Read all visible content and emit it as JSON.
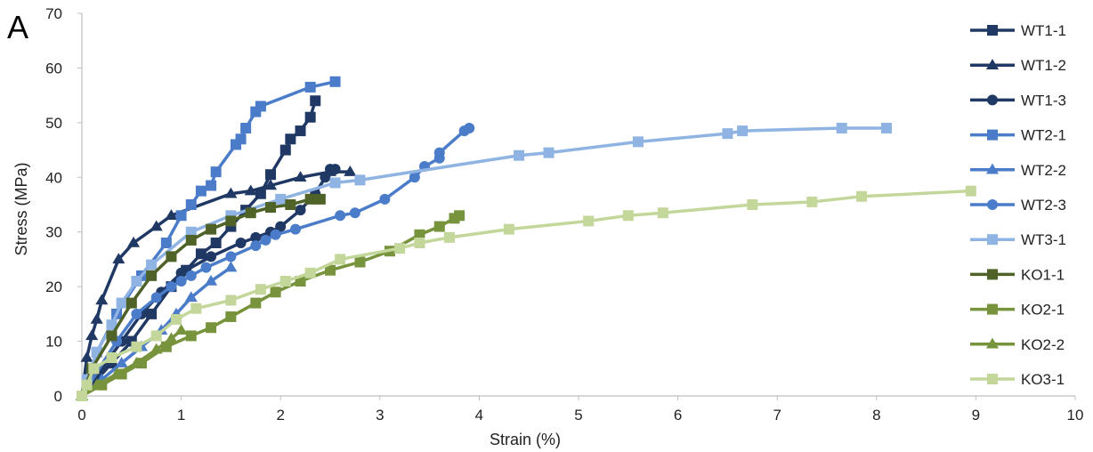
{
  "panel_label": "A",
  "chart_data": {
    "type": "line",
    "title": "",
    "xlabel": "Strain (%)",
    "ylabel": "Stress (MPa)",
    "xlim": [
      0,
      10
    ],
    "ylim": [
      0,
      70
    ],
    "xticks": [
      0,
      1,
      2,
      3,
      4,
      5,
      6,
      7,
      8,
      9,
      10
    ],
    "yticks": [
      0,
      10,
      20,
      30,
      40,
      50,
      60,
      70
    ],
    "grid": false,
    "legend_position": "right",
    "series": [
      {
        "name": "WT1-1",
        "color": "#1f3864",
        "marker": "square",
        "x": [
          0,
          0.15,
          0.3,
          0.5,
          0.7,
          0.9,
          1.05,
          1.2,
          1.35,
          1.5,
          1.65,
          1.8,
          1.9,
          2.05,
          2.1,
          2.2,
          2.3,
          2.35
        ],
        "y": [
          0,
          3,
          6,
          10,
          15,
          20,
          23,
          26,
          28,
          31,
          34,
          37,
          40.5,
          45,
          47,
          48.5,
          51,
          54
        ]
      },
      {
        "name": "WT1-2",
        "color": "#1f3864",
        "marker": "triangle",
        "x": [
          0,
          0.05,
          0.1,
          0.15,
          0.2,
          0.37,
          0.52,
          0.75,
          0.9,
          1.5,
          1.7,
          1.9,
          2.2,
          2.5,
          2.7
        ],
        "y": [
          0,
          7,
          11,
          14,
          17.5,
          25,
          28,
          31,
          33,
          37,
          37.5,
          38.5,
          40,
          41,
          41
        ]
      },
      {
        "name": "WT1-3",
        "color": "#1f3864",
        "marker": "circle",
        "x": [
          0,
          0.2,
          0.4,
          0.6,
          0.8,
          1.0,
          1.3,
          1.6,
          1.75,
          1.9,
          2.0,
          2.2,
          2.35,
          2.45,
          2.5,
          2.55
        ],
        "y": [
          0,
          5,
          10,
          15,
          19,
          22.5,
          25.5,
          28,
          29,
          30,
          31,
          34,
          37,
          40,
          41.5,
          41.5
        ]
      },
      {
        "name": "WT2-1",
        "color": "#4a7cc9",
        "marker": "square",
        "x": [
          0,
          0.15,
          0.35,
          0.6,
          0.85,
          1.0,
          1.1,
          1.2,
          1.3,
          1.35,
          1.55,
          1.6,
          1.65,
          1.75,
          1.8,
          2.3,
          2.55
        ],
        "y": [
          0,
          8,
          15,
          22,
          28,
          33,
          35,
          37.5,
          38.5,
          41,
          46,
          47,
          49,
          52,
          53,
          56.5,
          57.5
        ]
      },
      {
        "name": "WT2-2",
        "color": "#4a7cc9",
        "marker": "triangle",
        "x": [
          0,
          0.2,
          0.4,
          0.6,
          0.8,
          0.95,
          1.1,
          1.3,
          1.5
        ],
        "y": [
          0,
          3,
          6,
          9,
          12,
          15,
          18,
          21,
          23.5
        ]
      },
      {
        "name": "WT2-3",
        "color": "#4a7cc9",
        "marker": "circle",
        "x": [
          0,
          0.35,
          0.55,
          0.75,
          0.9,
          1.0,
          1.1,
          1.25,
          1.5,
          1.75,
          1.85,
          1.95,
          2.15,
          2.6,
          2.75,
          3.05,
          3.35,
          3.45,
          3.6,
          3.6,
          3.85,
          3.9
        ],
        "y": [
          0,
          10,
          15,
          18,
          20,
          21,
          22,
          23.5,
          25.5,
          27.5,
          28.5,
          29.5,
          30.5,
          33,
          33.5,
          36,
          40,
          42,
          43.5,
          44.5,
          48.5,
          49
        ]
      },
      {
        "name": "WT3-1",
        "color": "#8fb4e3",
        "marker": "square",
        "x": [
          0,
          0.05,
          0.15,
          0.3,
          0.4,
          0.55,
          0.7,
          1.1,
          1.5,
          2.0,
          2.55,
          2.8,
          4.4,
          4.7,
          5.6,
          6.5,
          6.65,
          7.65,
          8.1
        ],
        "y": [
          0,
          3,
          8,
          13,
          17,
          21,
          24,
          30,
          33,
          36,
          39,
          39.5,
          44,
          44.5,
          46.5,
          48,
          48.5,
          49,
          49
        ]
      },
      {
        "name": "KO1-1",
        "color": "#4f6228",
        "marker": "square",
        "x": [
          0,
          0.1,
          0.3,
          0.5,
          0.7,
          0.9,
          1.1,
          1.3,
          1.5,
          1.7,
          1.9,
          2.1,
          2.3,
          2.4
        ],
        "y": [
          0,
          5,
          11,
          17,
          22,
          25.5,
          28.5,
          30.5,
          32,
          33.5,
          34.5,
          35,
          36,
          36
        ]
      },
      {
        "name": "KO2-1",
        "color": "#77933c",
        "marker": "square",
        "x": [
          0,
          0.2,
          0.4,
          0.6,
          0.85,
          1.1,
          1.3,
          1.5,
          1.75,
          1.95,
          2.2,
          2.5,
          2.8,
          3.1,
          3.4,
          3.6,
          3.75,
          3.8
        ],
        "y": [
          0,
          2,
          4,
          6,
          9,
          11,
          12.5,
          14.5,
          17,
          19,
          21,
          23,
          24.5,
          26.5,
          29.5,
          31,
          32.5,
          33
        ]
      },
      {
        "name": "KO2-2",
        "color": "#77933c",
        "marker": "triangle",
        "x": [
          0,
          0.15,
          0.35,
          0.55,
          0.75,
          0.9,
          1.0
        ],
        "y": [
          0,
          2,
          4,
          6,
          8.5,
          10.5,
          12
        ]
      },
      {
        "name": "KO3-1",
        "color": "#c4d79b",
        "marker": "square",
        "x": [
          0,
          0.05,
          0.12,
          0.3,
          0.55,
          0.75,
          0.95,
          1.15,
          1.5,
          1.8,
          2.05,
          2.3,
          2.6,
          3.2,
          3.4,
          3.7,
          4.3,
          5.1,
          5.5,
          5.85,
          6.75,
          7.35,
          7.85,
          8.95
        ],
        "y": [
          0,
          2,
          5,
          7,
          9,
          11,
          14,
          16,
          17.5,
          19.5,
          21,
          22.5,
          25,
          27,
          28,
          29,
          30.5,
          32,
          33,
          33.5,
          35,
          35.5,
          36.5,
          37.5
        ]
      }
    ]
  }
}
